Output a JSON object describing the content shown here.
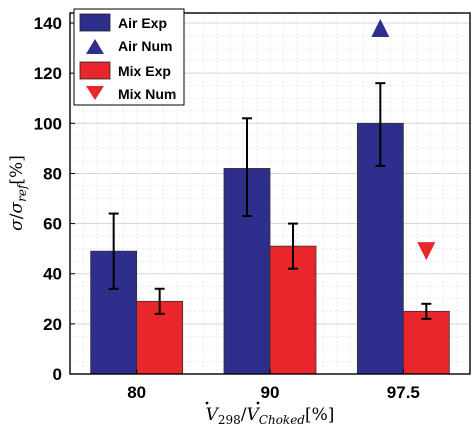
{
  "chart_data": {
    "type": "bar",
    "categories": [
      "80",
      "90",
      "97.5"
    ],
    "series": [
      {
        "name": "Air Exp",
        "kind": "bar",
        "color": "#2e2e8c",
        "values": [
          49,
          82,
          100
        ],
        "err_low": [
          34,
          63,
          83
        ],
        "err_high": [
          64,
          102,
          116
        ]
      },
      {
        "name": "Air Num",
        "kind": "marker",
        "marker": "triangle-up",
        "color": "#2e2e8c",
        "values": [
          null,
          null,
          138
        ]
      },
      {
        "name": "Mix Exp",
        "kind": "bar",
        "color": "#e8262b",
        "values": [
          29,
          51,
          25
        ],
        "err_low": [
          24,
          42,
          22
        ],
        "err_high": [
          34,
          60,
          28
        ]
      },
      {
        "name": "Mix Num",
        "kind": "marker",
        "marker": "triangle-down",
        "color": "#e8262b",
        "values": [
          null,
          null,
          49
        ]
      }
    ],
    "yticks": [
      0,
      20,
      40,
      60,
      80,
      100,
      120,
      140
    ],
    "ylim": [
      0,
      144
    ],
    "grid": true,
    "legend_position": "top-left",
    "xlabel": "V̇298/V̇Choked[%]",
    "ylabel": "σ/σref[%]",
    "xlabel_parts": {
      "dot_letter": "V",
      "sub1": "298",
      "sep": "/",
      "sub2": "Choked",
      "unit": "[%]"
    },
    "ylabel_parts": {
      "num": "σ",
      "sep": "/",
      "den": "σ",
      "sub": "ref",
      "unit": "[%]"
    }
  }
}
